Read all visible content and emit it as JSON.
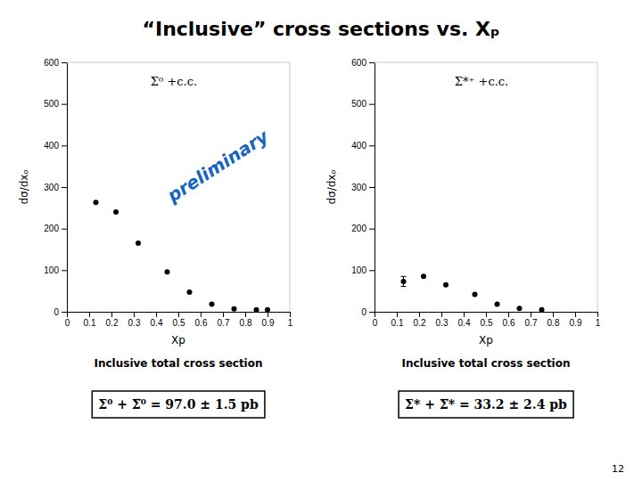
{
  "title": "“Inclusive” cross sections vs. Xₚ",
  "annotations": [
    {
      "text": "preliminary",
      "color": "#1565c0"
    },
    {
      "text": "12"
    }
  ],
  "chart_data": [
    {
      "type": "scatter",
      "x": [
        0.13,
        0.22,
        0.32,
        0.45,
        0.55,
        0.65,
        0.75,
        0.85,
        0.9
      ],
      "values": [
        263,
        240,
        165,
        96,
        47,
        18,
        7,
        5,
        5
      ],
      "errors": [
        0,
        0,
        0,
        0,
        0,
        0,
        0,
        0,
        0
      ],
      "color": "#000000",
      "xlabel": "Xp",
      "ylabel": "dσ/dxₚ",
      "xlim": [
        0,
        1
      ],
      "ylim": [
        0,
        600
      ],
      "xticks": [
        0,
        0.1,
        0.2,
        0.3,
        0.4,
        0.5,
        0.6,
        0.7,
        0.8,
        0.9,
        1
      ],
      "yticks": [
        0,
        100,
        200,
        300,
        400,
        500,
        600
      ],
      "annotations": [
        "Σ⁰ +c.c.",
        "Inclusive total cross section",
        "Σ⁰ + Σ̅⁰ = 97.0 ± 1.5 pb"
      ]
    },
    {
      "type": "scatter",
      "x": [
        0.13,
        0.22,
        0.32,
        0.45,
        0.55,
        0.65,
        0.75
      ],
      "values": [
        73,
        85,
        65,
        42,
        18,
        8,
        5
      ],
      "errors": [
        12,
        0,
        0,
        0,
        0,
        0,
        0
      ],
      "color": "#000000",
      "xlabel": "Xp",
      "ylabel": "dσ/dxₚ",
      "xlim": [
        0,
        1
      ],
      "ylim": [
        0,
        600
      ],
      "xticks": [
        0,
        0.1,
        0.2,
        0.3,
        0.4,
        0.5,
        0.6,
        0.7,
        0.8,
        0.9,
        1
      ],
      "yticks": [
        0,
        100,
        200,
        300,
        400,
        500,
        600
      ],
      "annotations": [
        "Σ*⁺ +c.c.",
        "Inclusive total cross section",
        "Σ* + Σ̅* = 33.2 ± 2.4 pb"
      ]
    }
  ]
}
